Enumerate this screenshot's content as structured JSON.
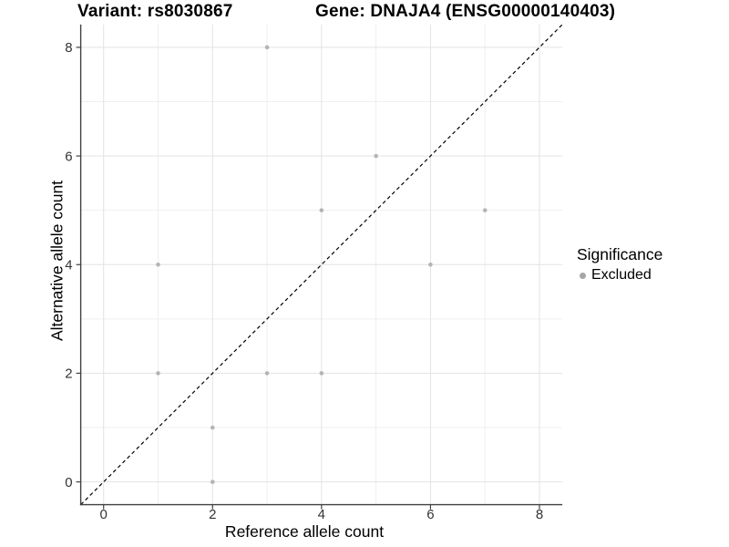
{
  "chart_data": {
    "type": "scatter",
    "title_left": "Variant: rs8030867",
    "title_right": "Gene: DNAJA4 (ENSG00000140403)",
    "xlabel": "Reference allele count",
    "ylabel": "Alternative allele count",
    "xlim": [
      -0.42,
      8.42
    ],
    "ylim": [
      -0.42,
      8.42
    ],
    "x_major_ticks": [
      0,
      2,
      4,
      6,
      8
    ],
    "y_major_ticks": [
      0,
      2,
      4,
      6,
      8
    ],
    "x_minor_gridlines": [
      1,
      3,
      5,
      7
    ],
    "y_minor_gridlines": [
      1,
      3,
      5,
      7
    ],
    "grid": "major and minor light-grey gridlines on white panel",
    "legend_position": "right",
    "series": [
      {
        "name": "Excluded",
        "marker": "circle",
        "color": "#b4b4b4",
        "points": [
          [
            1,
            2
          ],
          [
            1,
            4
          ],
          [
            2,
            0
          ],
          [
            2,
            1
          ],
          [
            3,
            2
          ],
          [
            3,
            8
          ],
          [
            4,
            2
          ],
          [
            4,
            5
          ],
          [
            5,
            6
          ],
          [
            6,
            4
          ],
          [
            7,
            5
          ]
        ]
      }
    ],
    "reference_line": {
      "description": "y = x identity line",
      "style": "dashed",
      "color": "#000000",
      "from": [
        -0.42,
        -0.42
      ],
      "to": [
        8.42,
        8.42
      ]
    },
    "legend": {
      "title": "Significance",
      "items": [
        {
          "label": "Excluded",
          "marker": "circle",
          "color": "#a6a6a6"
        }
      ]
    }
  },
  "colors": {
    "background": "#ffffff",
    "axis_line": "#404040",
    "tick_mark": "#404040",
    "tick_label": "#333333",
    "major_gridline": "#e3e3e3",
    "minor_gridline": "#efefef",
    "point": "#b4b4b4",
    "reference_line": "#000000",
    "text": "#000000"
  }
}
